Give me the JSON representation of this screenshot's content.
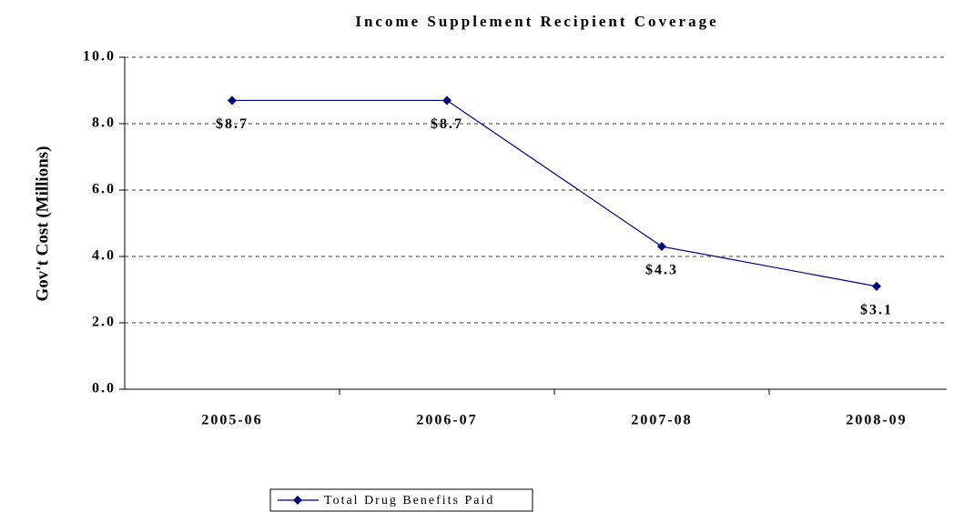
{
  "chart_data": {
    "type": "line",
    "title": "Income Supplement Recipient Coverage",
    "y_label": "Gov't Cost (Millions)",
    "categories": [
      "2005-06",
      "2006-07",
      "2007-08",
      "2008-09"
    ],
    "series": [
      {
        "name": "Total Drug Benefits Paid",
        "color": "#000080",
        "values": [
          8.7,
          8.7,
          4.3,
          3.1
        ],
        "value_labels": [
          "$8.7",
          "$8.7",
          "$4.3",
          "$3.1"
        ]
      }
    ],
    "ylim": [
      0,
      10
    ],
    "yticks": [
      {
        "value": 0,
        "label": "0.0"
      },
      {
        "value": 2,
        "label": "2.0"
      },
      {
        "value": 4,
        "label": "4.0"
      },
      {
        "value": 6,
        "label": "6.0"
      },
      {
        "value": 8,
        "label": "8.0"
      },
      {
        "value": 10,
        "label": "10.0"
      }
    ],
    "grid": true,
    "legend": "bottom"
  }
}
